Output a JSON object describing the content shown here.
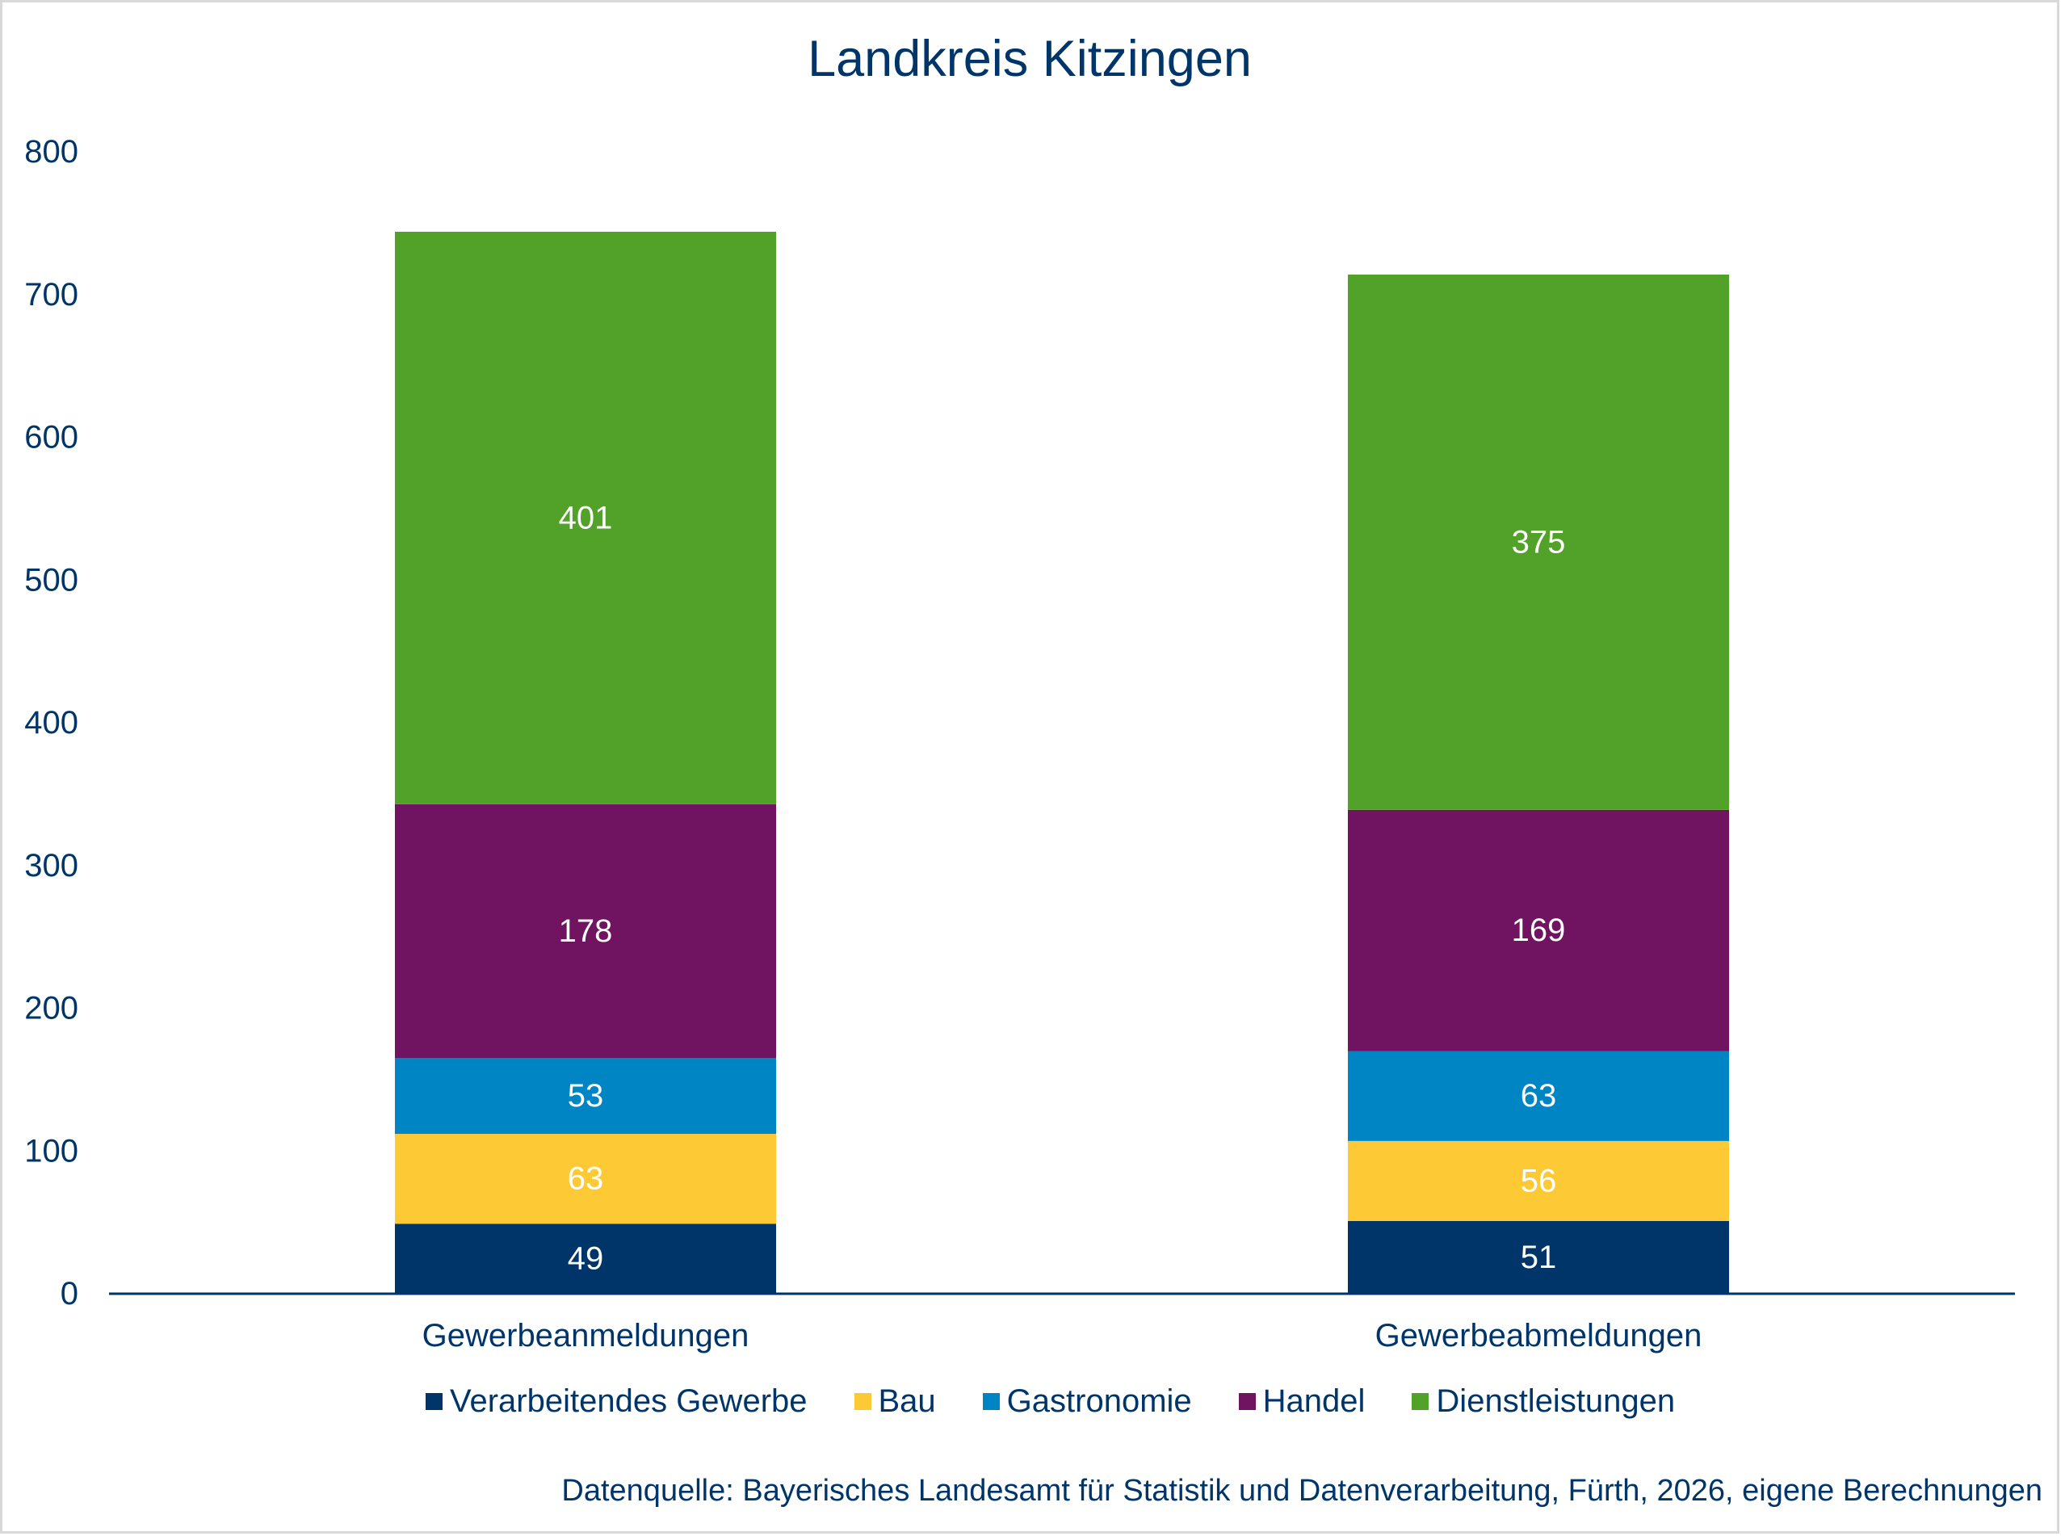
{
  "chart_data": {
    "type": "bar",
    "stacked": true,
    "title": "Landkreis Kitzingen",
    "xlabel": "",
    "ylabel": "",
    "categories": [
      "Gewerbeanmeldungen",
      "Gewerbeabmeldungen"
    ],
    "series": [
      {
        "name": "Verarbeitendes Gewerbe",
        "color": "#00356A",
        "values": [
          49,
          51
        ]
      },
      {
        "name": "Bau",
        "color": "#FDCA35",
        "values": [
          63,
          56
        ]
      },
      {
        "name": "Gastronomie",
        "color": "#0085C4",
        "values": [
          53,
          63
        ]
      },
      {
        "name": "Handel",
        "color": "#701461",
        "values": [
          178,
          169
        ]
      },
      {
        "name": "Dienstleistungen",
        "color": "#52A22A",
        "values": [
          401,
          375
        ]
      }
    ],
    "ylim": [
      0,
      800
    ],
    "yticks": [
      0,
      100,
      200,
      300,
      400,
      500,
      600,
      700,
      800
    ],
    "ytick_labels": [
      "0",
      "100",
      "200",
      "300",
      "400",
      "500",
      "600",
      "700",
      "800"
    ],
    "grid": false,
    "legend_position": "bottom",
    "data_labels": true,
    "source": "Datenquelle: Bayerisches Landesamt für Statistik und Datenverarbeitung, Fürth, 2026, eigene Berechnungen"
  },
  "colors": {
    "text": "#00356A",
    "axis": "#00356A",
    "frame": "#D9D9D9",
    "data_label": "#FFFFFF"
  }
}
